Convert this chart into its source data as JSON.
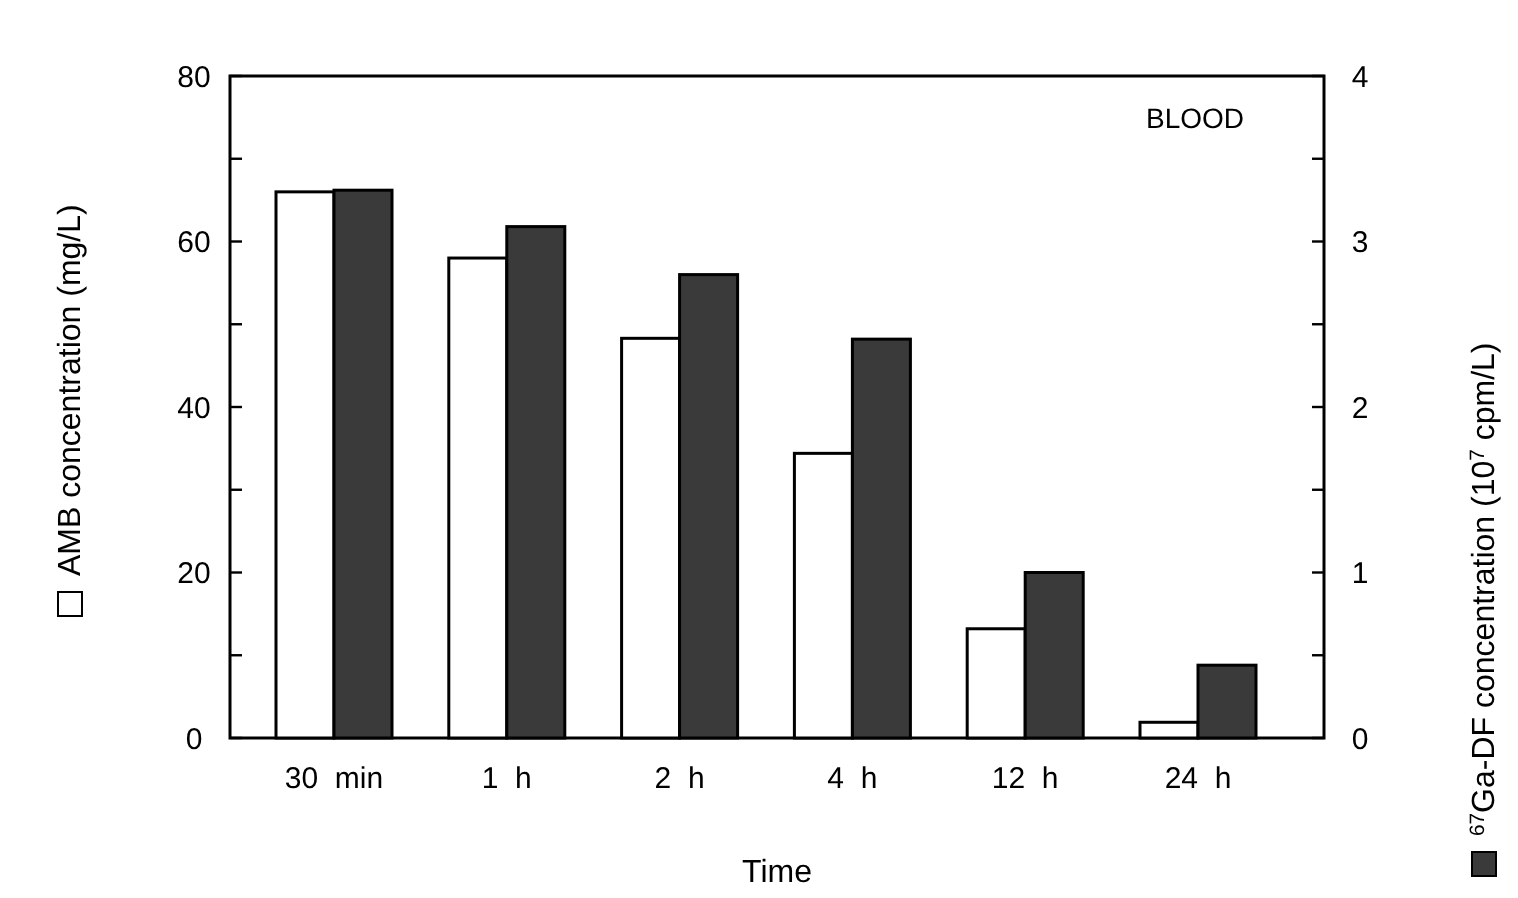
{
  "chart_data": {
    "type": "bar",
    "categories": [
      "30  min",
      "1  h",
      "2  h",
      "4  h",
      "12  h",
      "24  h"
    ],
    "series": [
      {
        "color": "#ffffff",
        "values": [
          66,
          58,
          48.3,
          34.4,
          13.2,
          1.9
        ]
      },
      {
        "color": "#3a3a3a",
        "values": [
          3.31,
          3.09,
          2.8,
          2.41,
          1.0,
          0.44
        ],
        "axis": "y2"
      }
    ],
    "xlabel": "Time",
    "ylabel": "AMB concentration (mg/L)",
    "y2label": "$^{67}$Ga-DF concentration (10$^{7}$ cpm/L)",
    "ylim": [
      0,
      80
    ],
    "yticks": [
      0,
      {
        "value": 10,
        "label": null
      },
      20,
      {
        "value": 30,
        "label": null
      },
      40,
      {
        "value": 50,
        "label": null
      },
      60,
      {
        "value": 70,
        "label": null
      },
      80
    ],
    "y2lim": [
      0,
      4
    ],
    "y2ticks": [
      0,
      {
        "value": 0.5,
        "label": null
      },
      1,
      {
        "value": 1.5,
        "label": null
      },
      2,
      {
        "value": 2.5,
        "label": null
      },
      3,
      {
        "value": 3.5,
        "label": null
      },
      4
    ],
    "annotations": [
      "BLOOD"
    ]
  }
}
